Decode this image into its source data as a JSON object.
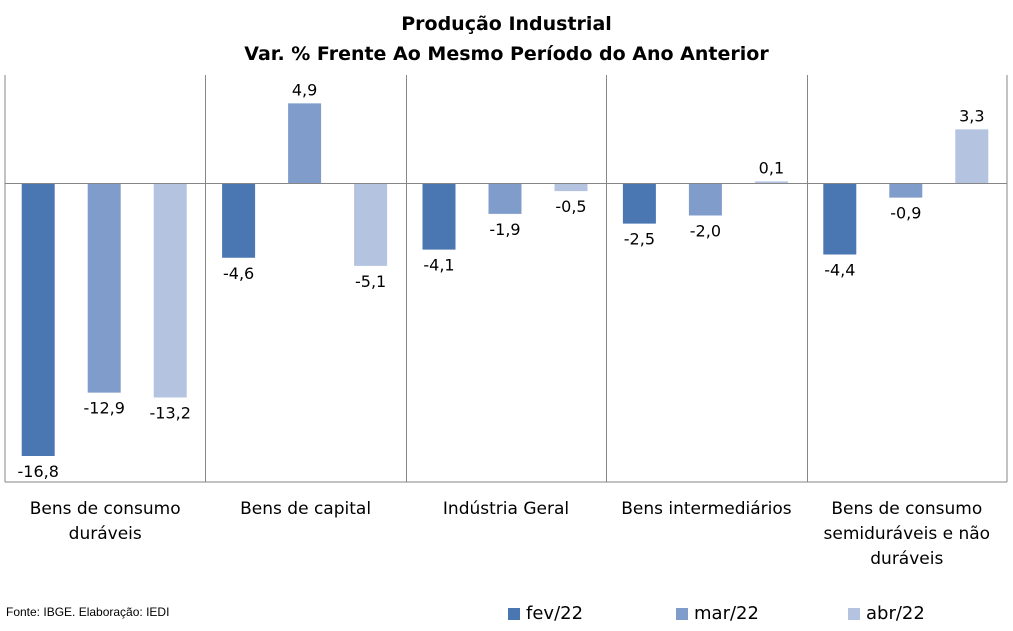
{
  "chart_data": {
    "type": "bar",
    "title_lines": [
      "Produção Industrial",
      "Var. % Frente Ao Mesmo Período do Ano Anterior"
    ],
    "categories": [
      [
        "Bens de consumo",
        "duráveis"
      ],
      [
        "Bens de capital"
      ],
      [
        "Indústria Geral"
      ],
      [
        "Bens intermediários"
      ],
      [
        "Bens de consumo",
        "semiduráveis e não",
        "duráveis"
      ]
    ],
    "series": [
      {
        "name": "fev/22",
        "color": "#4a77b2",
        "values": [
          -16.8,
          -4.6,
          -4.1,
          -2.5,
          -4.4
        ],
        "labels": [
          "-16,8",
          "-4,6",
          "-4,1",
          "-2,5",
          "-4,4"
        ]
      },
      {
        "name": "mar/22",
        "color": "#7f9ccb",
        "values": [
          -12.9,
          4.9,
          -1.9,
          -2.0,
          -0.9
        ],
        "labels": [
          "-12,9",
          "4,9",
          "-1,9",
          "-2,0",
          "-0,9"
        ]
      },
      {
        "name": "abr/22",
        "color": "#b4c3df",
        "values": [
          -13.2,
          -5.1,
          -0.5,
          0.1,
          3.3
        ],
        "labels": [
          "-13,2",
          "-5,1",
          "-0,5",
          "0,1",
          "3,3"
        ]
      }
    ],
    "legend_position": "bottom-right",
    "grid": false
  },
  "source": "Fonte: IBGE. Elaboração: IEDI"
}
